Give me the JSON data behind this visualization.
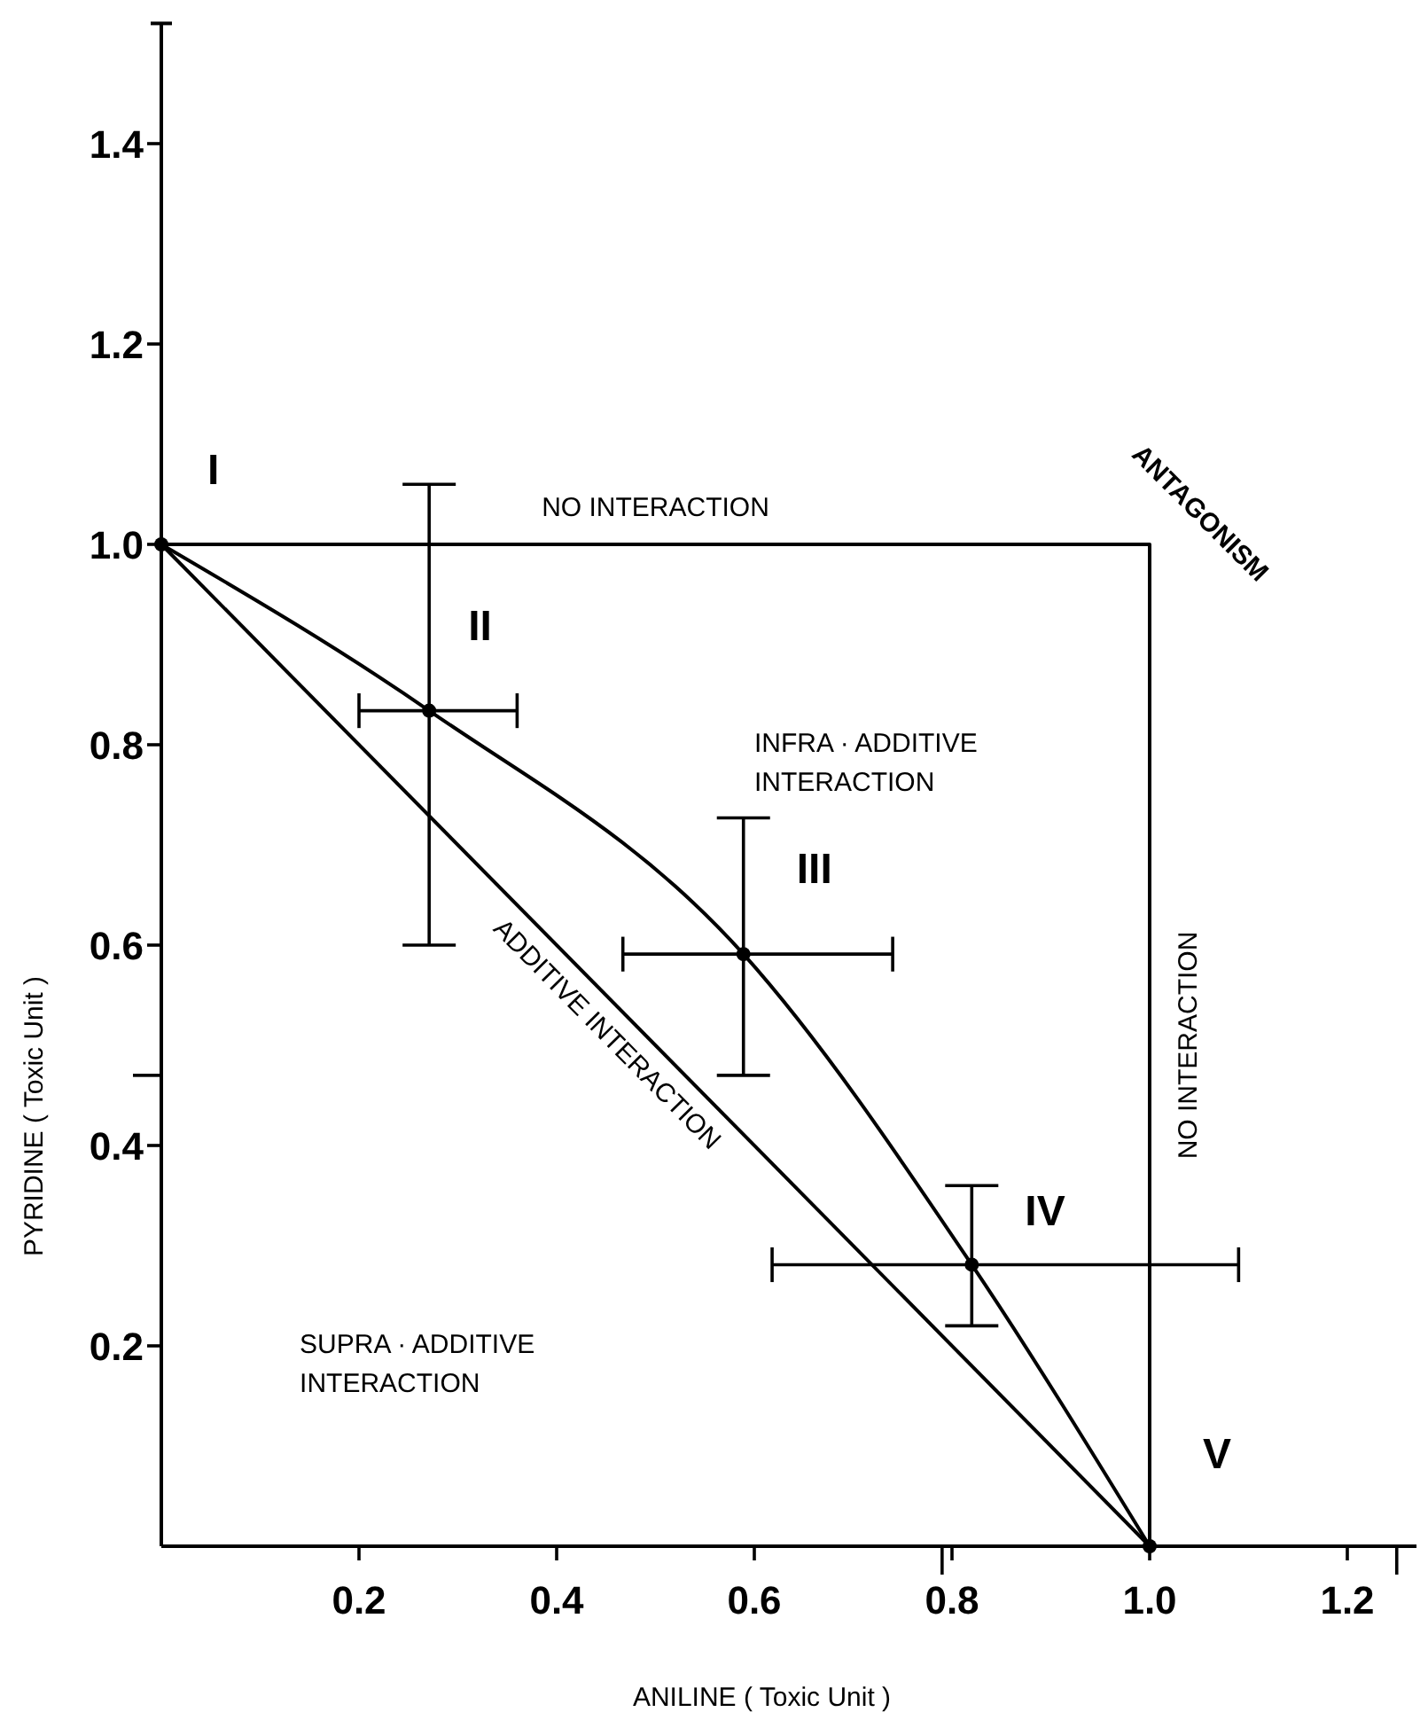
{
  "chart_data": {
    "type": "line",
    "xlabel": "ANILINE  ( Toxic Unit )",
    "ylabel": "PYRIDINE  ( Toxic Unit )",
    "xlim": [
      0,
      1.27
    ],
    "ylim": [
      0,
      1.52
    ],
    "xticks": [
      {
        "value": 0.2,
        "label": "0.2"
      },
      {
        "value": 0.4,
        "label": "0.4"
      },
      {
        "value": 0.6,
        "label": "0.6"
      },
      {
        "value": 0.79,
        "label": null
      },
      {
        "value": 0.8,
        "label": "0.8"
      },
      {
        "value": 1.0,
        "label": "1.0"
      },
      {
        "value": 1.2,
        "label": "1.2"
      },
      {
        "value": 1.25,
        "label": null
      }
    ],
    "yticks": [
      {
        "value": 0.2,
        "label": "0.2"
      },
      {
        "value": 0.4,
        "label": "0.4"
      },
      {
        "value": 0.47,
        "label": null
      },
      {
        "value": 0.6,
        "label": "0.6"
      },
      {
        "value": 0.8,
        "label": "0.8"
      },
      {
        "value": 1.0,
        "label": "1.0"
      },
      {
        "value": 1.2,
        "label": "1.2"
      },
      {
        "value": 1.4,
        "label": "1.4"
      }
    ],
    "series": [
      {
        "color": "#000000",
        "marker": "circle",
        "x": [
          0,
          0.271,
          0.589,
          0.82,
          1
        ],
        "values": [
          1,
          0.834,
          0.591,
          0.281,
          0
        ],
        "errors": [
          null,
          [
            0.6,
            1.06
          ],
          [
            0.47,
            0.727
          ],
          [
            0.22,
            0.36
          ],
          null
        ],
        "xerrors": [
          null,
          [
            0.2,
            0.36
          ],
          [
            0.467,
            0.74
          ],
          [
            0.618,
            1.09
          ],
          null
        ]
      },
      {
        "color": "#000000",
        "marker": "none",
        "x": [
          0,
          1
        ],
        "values": [
          1,
          0
        ]
      },
      {
        "color": "#000000",
        "marker": "none",
        "x": [
          0,
          1,
          1
        ],
        "values": [
          1,
          1,
          0
        ]
      }
    ],
    "annotations": [
      {
        "text": "I",
        "x": 0,
        "y": 1
      },
      {
        "text": "II",
        "x": 0.271,
        "y": 0.834
      },
      {
        "text": "III",
        "x": 0.589,
        "y": 0.591
      },
      {
        "text": "IV",
        "x": 0.82,
        "y": 0.281
      },
      {
        "text": "V",
        "x": 1,
        "y": 0
      },
      "NO  INTERACTION",
      "ANTAGONISM",
      "INFRA · ADDITIVE\nINTERACTION",
      "ADDITIVE  INTERACTION",
      "NO  INTERACTION",
      "SUPRA · ADDITIVE\nINTERACTION"
    ]
  }
}
